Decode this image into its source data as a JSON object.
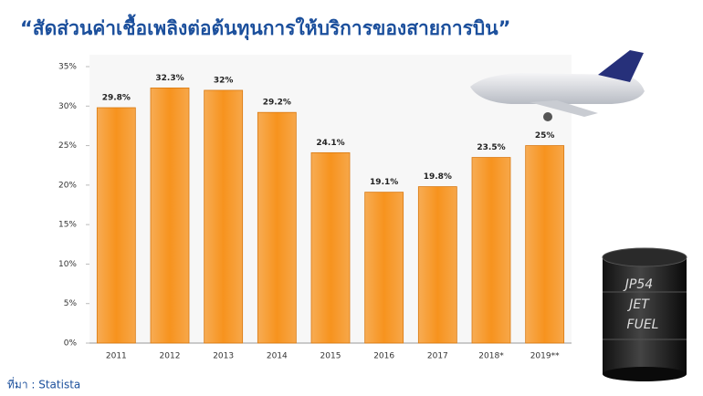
{
  "chart_data": {
    "type": "bar",
    "title": "“สัดส่วนค่าเชื้อเพลิงต่อต้นทุนการให้บริการของสายการบิน”",
    "source": "ที่มา : Statista",
    "categories": [
      "2011",
      "2012",
      "2013",
      "2014",
      "2015",
      "2016",
      "2017",
      "2018*",
      "2019**"
    ],
    "values": [
      29.8,
      32.3,
      32,
      29.2,
      24.1,
      19.1,
      19.8,
      23.5,
      25
    ],
    "value_labels": [
      "29.8%",
      "32.3%",
      "32%",
      "29.2%",
      "24.1%",
      "19.1%",
      "19.8%",
      "23.5%",
      "25%"
    ],
    "color": "#f7931e",
    "ylim": [
      0,
      35
    ],
    "yticks": [
      {
        "value": 0,
        "label": "0%"
      },
      {
        "value": 5,
        "label": "5%"
      },
      {
        "value": 10,
        "label": "10%"
      },
      {
        "value": 15,
        "label": "15%"
      },
      {
        "value": 20,
        "label": "20%"
      },
      {
        "value": 25,
        "label": "25%"
      },
      {
        "value": 30,
        "label": "30%"
      },
      {
        "value": 35,
        "label": "35%"
      }
    ],
    "grid": false,
    "annotations": [
      "JP54",
      "JET",
      "FUEL"
    ]
  }
}
